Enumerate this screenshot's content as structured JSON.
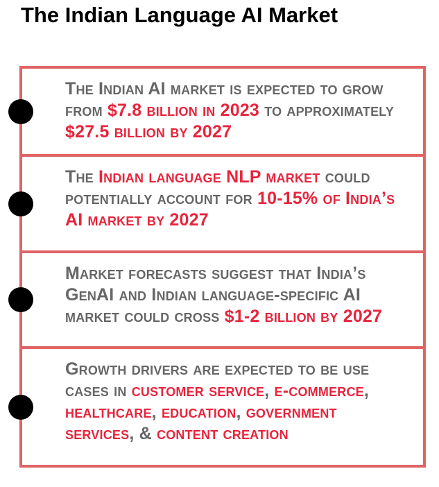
{
  "title": "The Indian Language AI Market",
  "items": [
    {
      "runs": [
        {
          "text": "The Indian AI market is expected to grow from ",
          "emphasis": false
        },
        {
          "text": "$7.8 billion in 2023",
          "emphasis": true
        },
        {
          "text": " to approximately ",
          "emphasis": false
        },
        {
          "text": "$27.5 billion by 2027",
          "emphasis": true
        }
      ]
    },
    {
      "runs": [
        {
          "text": "The ",
          "emphasis": false
        },
        {
          "text": "Indian language NLP market",
          "emphasis": true
        },
        {
          "text": " could potentially account for ",
          "emphasis": false
        },
        {
          "text": "10-15% of India’s AI market by 2027",
          "emphasis": true
        }
      ]
    },
    {
      "runs": [
        {
          "text": "Market forecasts suggest that India’s GenAI and Indian language-specific AI market could cross ",
          "emphasis": false
        },
        {
          "text": "$1-2 billion by 2027",
          "emphasis": true
        }
      ]
    },
    {
      "runs": [
        {
          "text": "Growth drivers are expected to be use cases in ",
          "emphasis": false
        },
        {
          "text": "customer service",
          "emphasis": true
        },
        {
          "text": ", ",
          "emphasis": false
        },
        {
          "text": "e-commerce",
          "emphasis": true
        },
        {
          "text": ", ",
          "emphasis": false
        },
        {
          "text": "healthcare",
          "emphasis": true
        },
        {
          "text": ", ",
          "emphasis": false
        },
        {
          "text": "education",
          "emphasis": true
        },
        {
          "text": ", ",
          "emphasis": false
        },
        {
          "text": "government services",
          "emphasis": true
        },
        {
          "text": ", & ",
          "emphasis": false
        },
        {
          "text": "content creation",
          "emphasis": true
        }
      ]
    }
  ]
}
